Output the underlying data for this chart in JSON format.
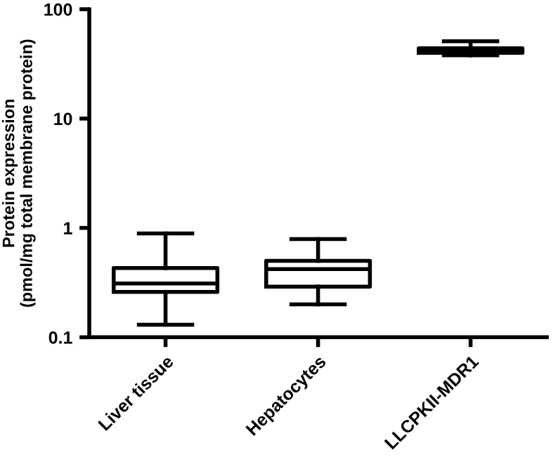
{
  "chart_data": {
    "type": "box",
    "categories": [
      "Liver tissue",
      "Hepatocytes",
      "LLCPKII-MDR1"
    ],
    "ylabel": "Protein expression\n(pmol/mg total membrane protein)",
    "boxes": [
      {
        "low": 0.13,
        "q1": 0.26,
        "median": 0.31,
        "q3": 0.43,
        "high": 0.89
      },
      {
        "low": 0.2,
        "q1": 0.29,
        "median": 0.42,
        "q3": 0.5,
        "high": 0.79
      },
      {
        "low": 38,
        "q1": 40,
        "median": 43,
        "q3": 44,
        "high": 51
      }
    ],
    "color": "#000000",
    "log": "y",
    "ylim": [
      0.1,
      100
    ],
    "yticks": [
      100,
      10,
      1,
      0.1
    ],
    "grid": false,
    "legend": false
  }
}
